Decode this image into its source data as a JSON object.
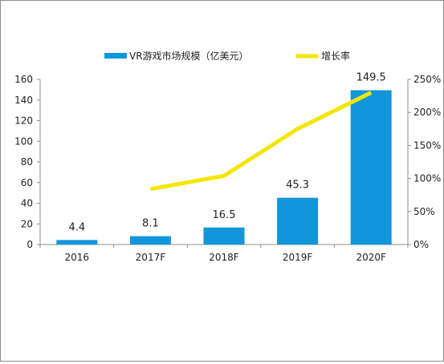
{
  "chart_data": {
    "type": "bar",
    "categories": [
      "2016",
      "2017F",
      "2018F",
      "2019F",
      "2020F"
    ],
    "series": [
      {
        "name": "VR游戏市场规模（亿美元）",
        "type": "bar",
        "axis": "left",
        "values": [
          4.4,
          8.1,
          16.5,
          45.3,
          149.5
        ],
        "data_labels": [
          "4.4",
          "8.1",
          "16.5",
          "45.3",
          "149.5"
        ],
        "color": "#1296db"
      },
      {
        "name": "增长率",
        "type": "line",
        "axis": "right",
        "values": [
          null,
          0.84,
          1.04,
          1.75,
          2.3
        ],
        "color": "#f5e600"
      }
    ],
    "y_left": {
      "ylim": [
        0,
        160
      ],
      "ticks": [
        "0",
        "20",
        "40",
        "60",
        "80",
        "100",
        "120",
        "140",
        "160"
      ]
    },
    "y_right": {
      "ylim": [
        0,
        2.5
      ],
      "ticks": [
        "0%",
        "50%",
        "100%",
        "150%",
        "200%",
        "250%"
      ]
    },
    "legend_position": "top",
    "grid": false
  }
}
